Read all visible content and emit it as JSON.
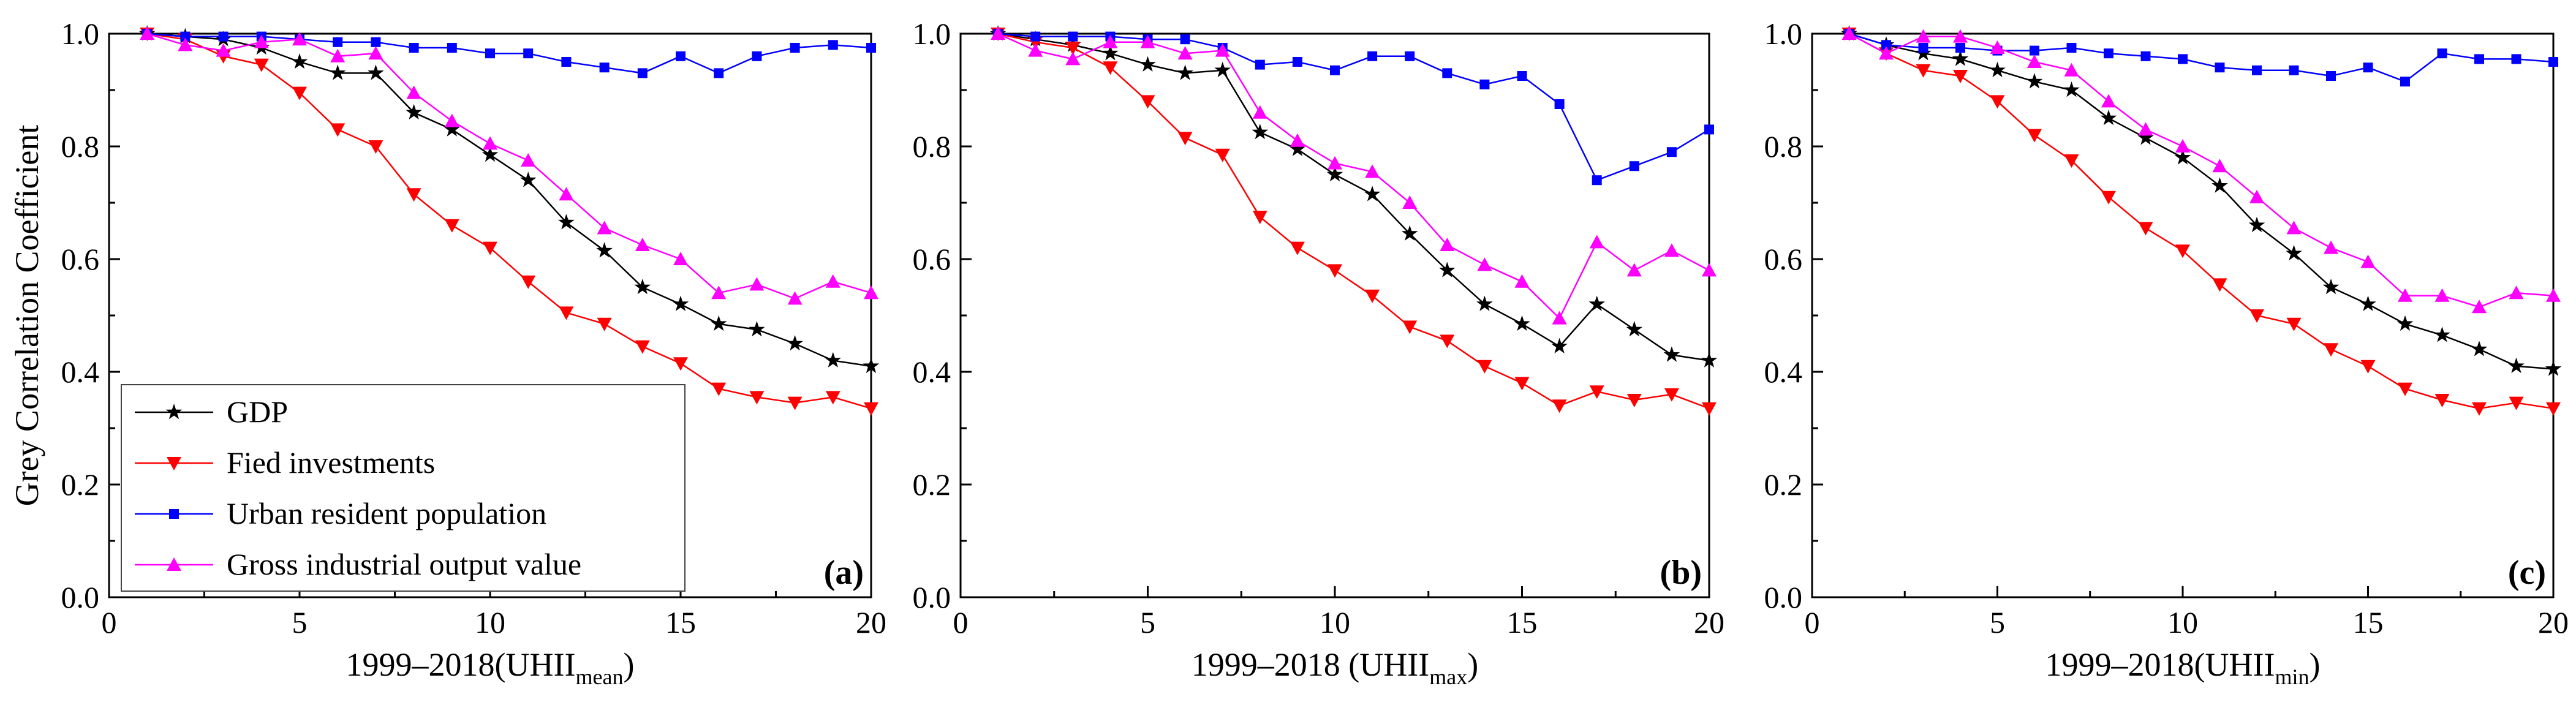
{
  "chart_data": [
    {
      "type": "line",
      "panel_label": "(a)",
      "xlabel": "1999–2018(UHII",
      "xlabel_sub": "mean",
      "xlabel_close": ")",
      "ylabel": "Grey Correlation Coefficient",
      "xlim": [
        0,
        20
      ],
      "ylim": [
        0.0,
        1.0
      ],
      "x_ticks": [
        "0",
        "5",
        "10",
        "15",
        "20"
      ],
      "y_ticks": [
        "0.0",
        "0.2",
        "0.4",
        "0.6",
        "0.8",
        "1.0"
      ],
      "legend_position": "bottom-left",
      "x": [
        1,
        2,
        3,
        4,
        5,
        6,
        7,
        8,
        9,
        10,
        11,
        12,
        13,
        14,
        15,
        16,
        17,
        18,
        19,
        20
      ],
      "series": [
        {
          "name": "GDP",
          "color": "#000000",
          "marker": "star",
          "values": [
            1.0,
            0.995,
            0.99,
            0.975,
            0.95,
            0.93,
            0.93,
            0.86,
            0.83,
            0.785,
            0.74,
            0.665,
            0.615,
            0.55,
            0.52,
            0.485,
            0.475,
            0.45,
            0.42,
            0.41
          ]
        },
        {
          "name": "Fied investments",
          "color": "#ff0000",
          "marker": "triangle-down",
          "values": [
            1.0,
            0.99,
            0.96,
            0.945,
            0.895,
            0.83,
            0.8,
            0.715,
            0.66,
            0.62,
            0.56,
            0.505,
            0.485,
            0.445,
            0.415,
            0.37,
            0.355,
            0.345,
            0.355,
            0.335
          ]
        },
        {
          "name": "Urban resident population",
          "color": "#0000ff",
          "marker": "square",
          "values": [
            1.0,
            0.995,
            0.995,
            0.995,
            0.99,
            0.985,
            0.985,
            0.975,
            0.975,
            0.965,
            0.965,
            0.95,
            0.94,
            0.93,
            0.96,
            0.93,
            0.96,
            0.975,
            0.98,
            0.975
          ]
        },
        {
          "name": "Gross industrial output value",
          "color": "#ff00ff",
          "marker": "triangle-up",
          "values": [
            1.0,
            0.98,
            0.97,
            0.985,
            0.99,
            0.96,
            0.965,
            0.895,
            0.845,
            0.805,
            0.775,
            0.715,
            0.655,
            0.625,
            0.6,
            0.54,
            0.555,
            0.53,
            0.56,
            0.54
          ]
        }
      ]
    },
    {
      "type": "line",
      "panel_label": "(b)",
      "xlabel": "1999–2018 (UHII",
      "xlabel_sub": "max",
      "xlabel_close": ")",
      "ylabel": "",
      "xlim": [
        0,
        20
      ],
      "ylim": [
        0.0,
        1.0
      ],
      "x_ticks": [
        "0",
        "5",
        "10",
        "15",
        "20"
      ],
      "y_ticks": [
        "0.0",
        "0.2",
        "0.4",
        "0.6",
        "0.8",
        "1.0"
      ],
      "x": [
        1,
        2,
        3,
        4,
        5,
        6,
        7,
        8,
        9,
        10,
        11,
        12,
        13,
        14,
        15,
        16,
        17,
        18,
        19,
        20
      ],
      "series": [
        {
          "name": "GDP",
          "color": "#000000",
          "marker": "star",
          "values": [
            1.0,
            0.99,
            0.98,
            0.965,
            0.945,
            0.93,
            0.935,
            0.825,
            0.795,
            0.75,
            0.715,
            0.645,
            0.58,
            0.52,
            0.485,
            0.445,
            0.52,
            0.475,
            0.43,
            0.42
          ]
        },
        {
          "name": "Fied investments",
          "color": "#ff0000",
          "marker": "triangle-down",
          "values": [
            1.0,
            0.985,
            0.975,
            0.94,
            0.88,
            0.815,
            0.785,
            0.675,
            0.62,
            0.58,
            0.535,
            0.48,
            0.455,
            0.41,
            0.38,
            0.34,
            0.365,
            0.35,
            0.36,
            0.335
          ]
        },
        {
          "name": "Urban resident population",
          "color": "#0000ff",
          "marker": "square",
          "values": [
            1.0,
            0.995,
            0.995,
            0.995,
            0.99,
            0.99,
            0.975,
            0.945,
            0.95,
            0.935,
            0.96,
            0.96,
            0.93,
            0.91,
            0.925,
            0.875,
            0.74,
            0.765,
            0.79,
            0.83
          ]
        },
        {
          "name": "Gross industrial output value",
          "color": "#ff00ff",
          "marker": "triangle-up",
          "values": [
            1.0,
            0.97,
            0.955,
            0.985,
            0.985,
            0.965,
            0.97,
            0.86,
            0.81,
            0.77,
            0.755,
            0.7,
            0.625,
            0.59,
            0.56,
            0.495,
            0.63,
            0.58,
            0.615,
            0.58
          ]
        }
      ]
    },
    {
      "type": "line",
      "panel_label": "(c)",
      "xlabel": "1999–2018(UHII",
      "xlabel_sub": "min",
      "xlabel_close": ")",
      "ylabel": "",
      "xlim": [
        0,
        20
      ],
      "ylim": [
        0.0,
        1.0
      ],
      "x_ticks": [
        "0",
        "5",
        "10",
        "15",
        "20"
      ],
      "y_ticks": [
        "0.0",
        "0.2",
        "0.4",
        "0.6",
        "0.8",
        "1.0"
      ],
      "x": [
        1,
        2,
        3,
        4,
        5,
        6,
        7,
        8,
        9,
        10,
        11,
        12,
        13,
        14,
        15,
        16,
        17,
        18,
        19,
        20
      ],
      "series": [
        {
          "name": "GDP",
          "color": "#000000",
          "marker": "star",
          "values": [
            1.0,
            0.98,
            0.965,
            0.955,
            0.935,
            0.915,
            0.9,
            0.85,
            0.815,
            0.78,
            0.73,
            0.66,
            0.61,
            0.55,
            0.52,
            0.485,
            0.465,
            0.44,
            0.41,
            0.405
          ]
        },
        {
          "name": "Fied investments",
          "color": "#ff0000",
          "marker": "triangle-down",
          "values": [
            1.0,
            0.965,
            0.935,
            0.925,
            0.88,
            0.82,
            0.775,
            0.71,
            0.655,
            0.615,
            0.555,
            0.5,
            0.485,
            0.44,
            0.41,
            0.37,
            0.35,
            0.335,
            0.345,
            0.335
          ]
        },
        {
          "name": "Urban resident population",
          "color": "#0000ff",
          "marker": "square",
          "values": [
            1.0,
            0.98,
            0.975,
            0.975,
            0.97,
            0.97,
            0.975,
            0.965,
            0.96,
            0.955,
            0.94,
            0.935,
            0.935,
            0.925,
            0.94,
            0.915,
            0.965,
            0.955,
            0.955,
            0.95
          ]
        },
        {
          "name": "Gross industrial output value",
          "color": "#ff00ff",
          "marker": "triangle-up",
          "values": [
            1.0,
            0.965,
            0.995,
            0.995,
            0.975,
            0.95,
            0.935,
            0.88,
            0.83,
            0.8,
            0.765,
            0.71,
            0.655,
            0.62,
            0.595,
            0.535,
            0.535,
            0.515,
            0.54,
            0.535
          ]
        }
      ]
    }
  ]
}
